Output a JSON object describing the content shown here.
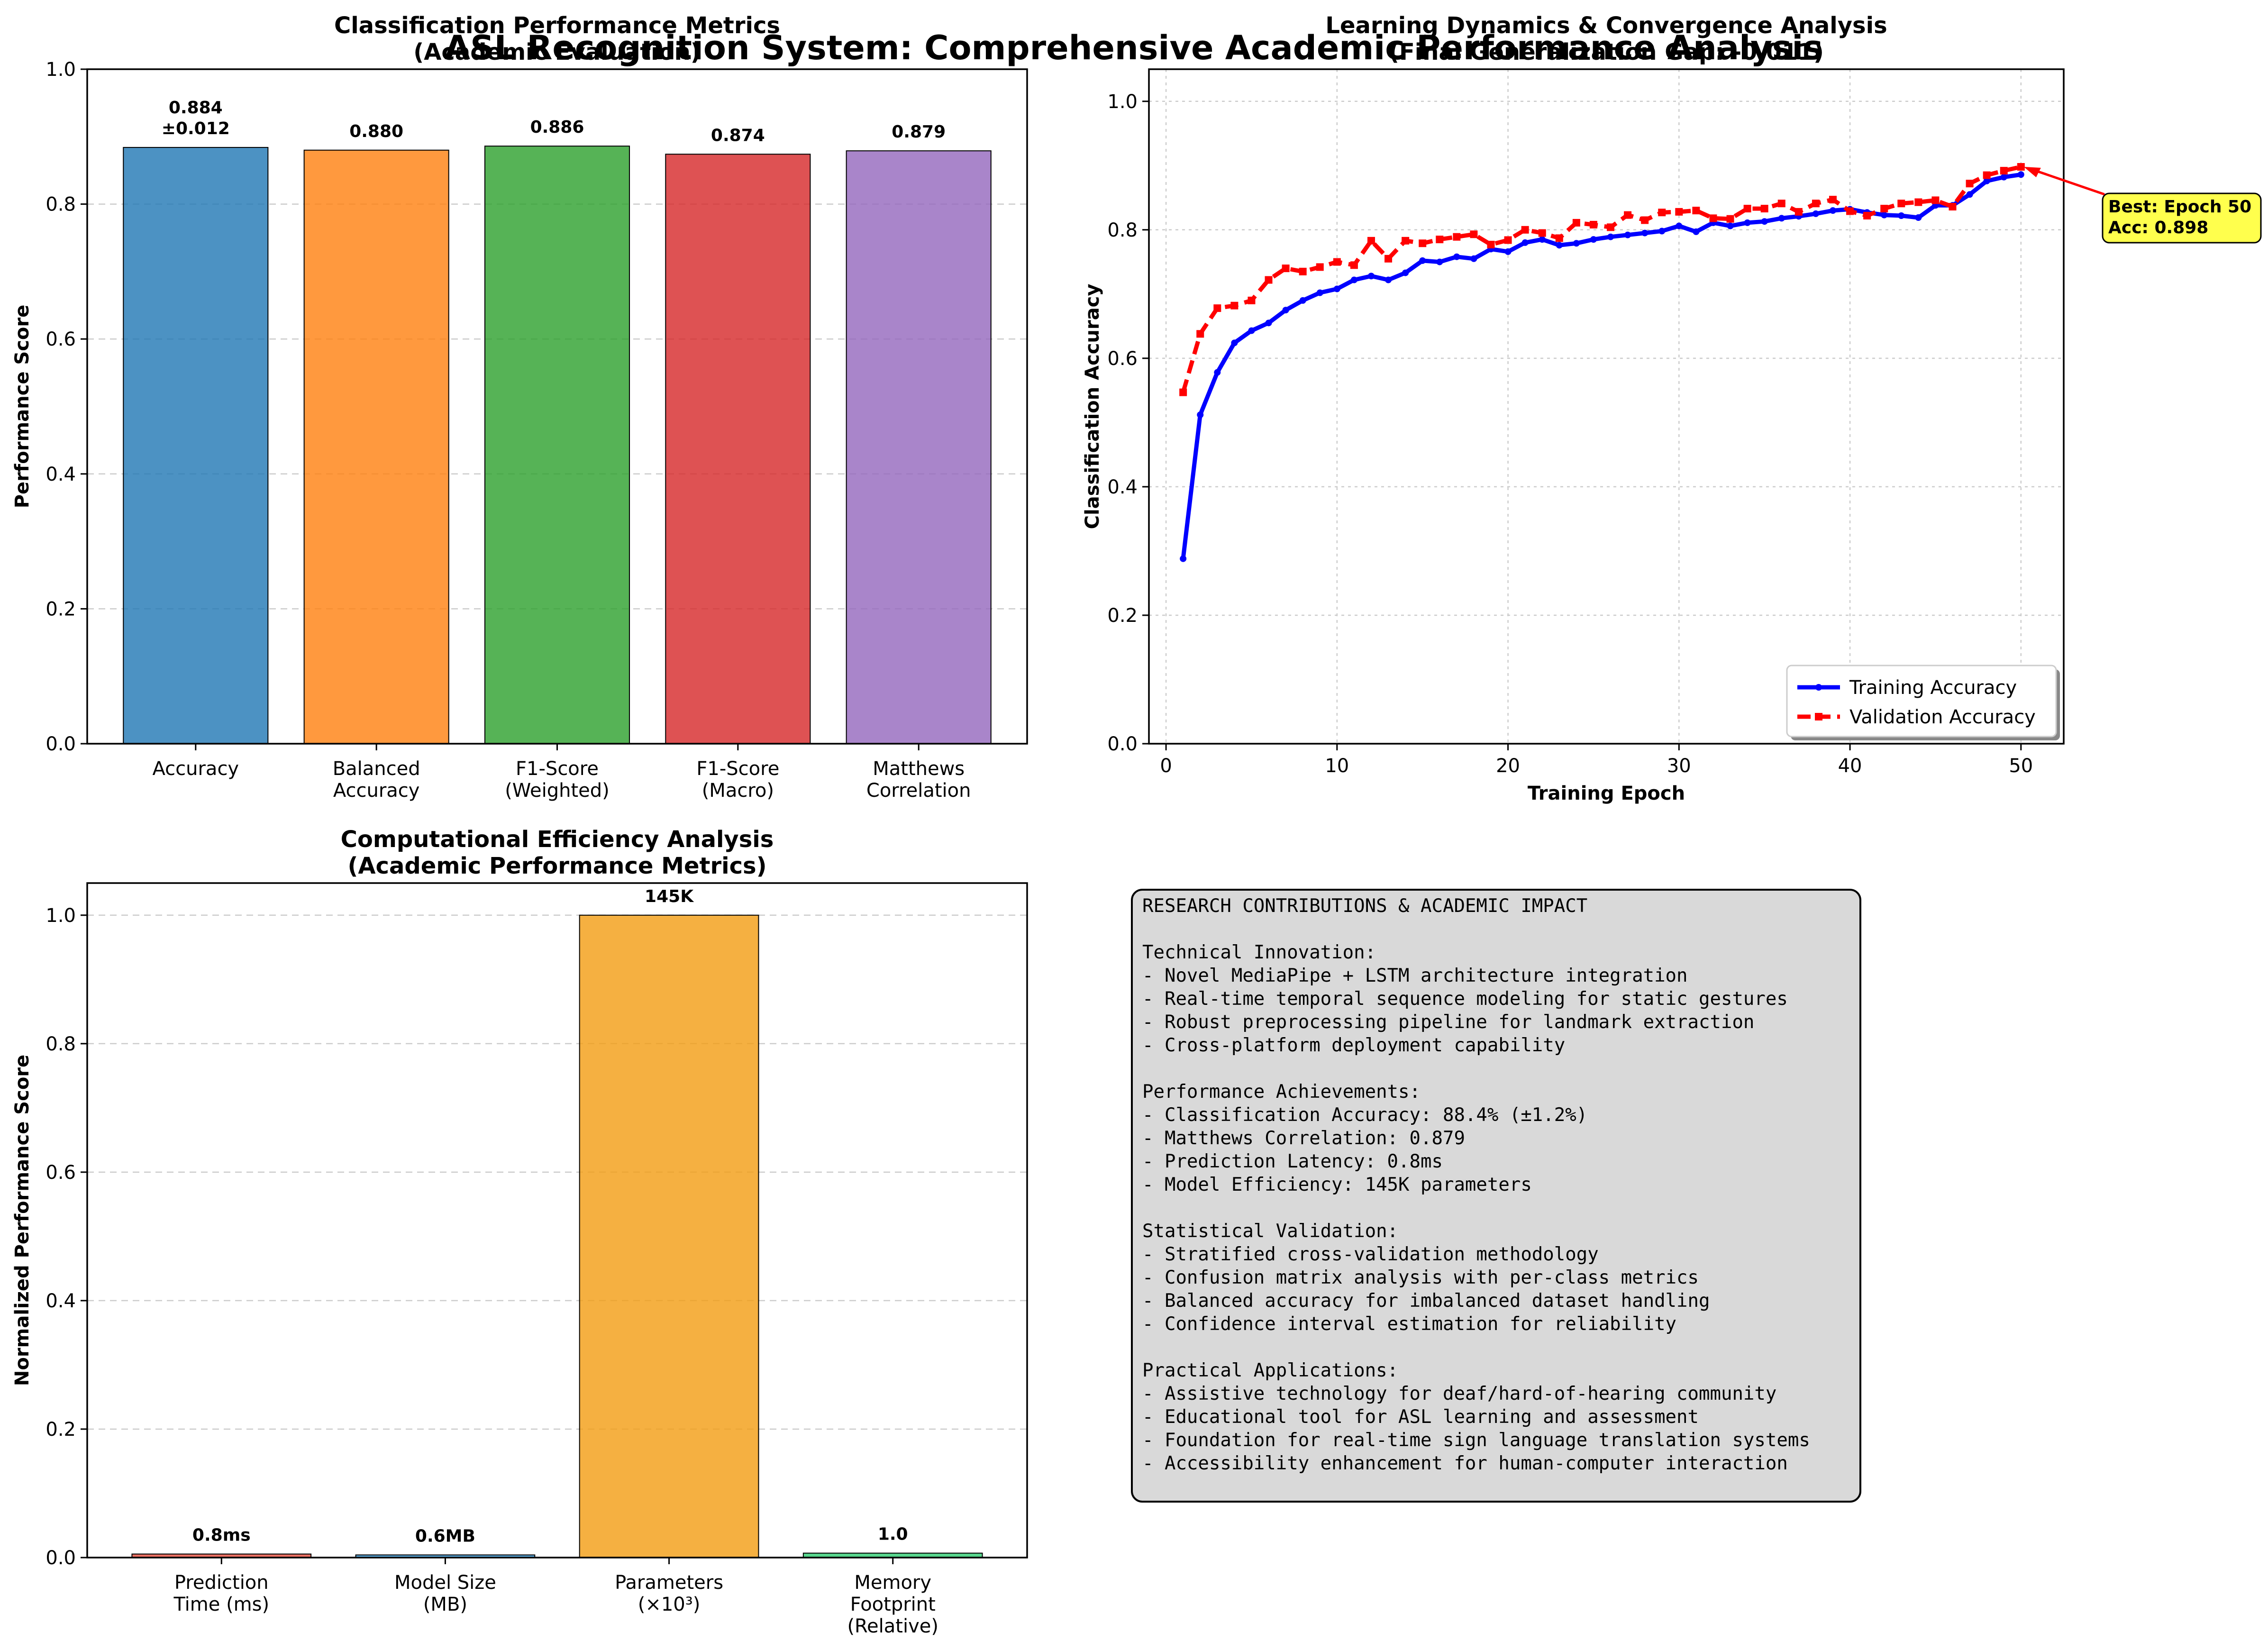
{
  "suptitle": "ASL Recognition System: Comprehensive Academic Performance Analysis",
  "chart_data": [
    {
      "id": "classification",
      "type": "bar",
      "title": [
        "Classification Performance Metrics",
        "(Academic Evaluation)"
      ],
      "xlabel": "",
      "ylabel": "Performance Score",
      "ylim": [
        0,
        1.0
      ],
      "yticks": [
        "0.0",
        "0.2",
        "0.4",
        "0.6",
        "0.8",
        "1.0"
      ],
      "categories": [
        [
          "Accuracy"
        ],
        [
          "Balanced",
          "Accuracy"
        ],
        [
          "F1-Score",
          "(Weighted)"
        ],
        [
          "F1-Score",
          "(Macro)"
        ],
        [
          "Matthews",
          "Correlation"
        ]
      ],
      "values": [
        0.884,
        0.88,
        0.886,
        0.874,
        0.879
      ],
      "value_labels": [
        [
          "0.884",
          "±0.012"
        ],
        [
          "0.880"
        ],
        [
          "0.886"
        ],
        [
          "0.874"
        ],
        [
          "0.879"
        ]
      ],
      "colors": [
        "#1f77b4",
        "#ff7f0e",
        "#2ca02c",
        "#d62728",
        "#9467bd"
      ],
      "grid": "y-dashed"
    },
    {
      "id": "learning",
      "type": "line",
      "title": [
        "Learning Dynamics & Convergence Analysis",
        "(Final Generalization Gap: -0.011)"
      ],
      "xlabel": "Training Epoch",
      "ylabel": "Classification Accuracy",
      "xlim": [
        0,
        52.5
      ],
      "ylim": [
        0,
        1.05
      ],
      "xticks": [
        "0",
        "10",
        "20",
        "30",
        "40",
        "50"
      ],
      "yticks": [
        "0.0",
        "0.2",
        "0.4",
        "0.6",
        "0.8",
        "1.0"
      ],
      "x": [
        1,
        2,
        3,
        4,
        5,
        6,
        7,
        8,
        9,
        10,
        11,
        12,
        13,
        14,
        15,
        16,
        17,
        18,
        19,
        20,
        21,
        22,
        23,
        24,
        25,
        26,
        27,
        28,
        29,
        30,
        31,
        32,
        33,
        34,
        35,
        36,
        37,
        38,
        39,
        40,
        41,
        42,
        43,
        44,
        45,
        46,
        47,
        48,
        49,
        50
      ],
      "series": [
        {
          "name": "Training Accuracy",
          "color": "#0000ff",
          "style": "solid",
          "values": [
            0.288,
            0.512,
            0.578,
            0.624,
            0.643,
            0.655,
            0.675,
            0.69,
            0.702,
            0.708,
            0.722,
            0.728,
            0.722,
            0.733,
            0.752,
            0.75,
            0.758,
            0.755,
            0.77,
            0.766,
            0.78,
            0.785,
            0.776,
            0.779,
            0.785,
            0.789,
            0.792,
            0.795,
            0.798,
            0.806,
            0.797,
            0.811,
            0.806,
            0.811,
            0.813,
            0.818,
            0.821,
            0.825,
            0.83,
            0.832,
            0.827,
            0.823,
            0.822,
            0.819,
            0.838,
            0.838,
            0.855,
            0.876,
            0.882,
            0.886
          ]
        },
        {
          "name": "Validation Accuracy",
          "color": "#ff0000",
          "style": "dashed",
          "values": [
            0.547,
            0.638,
            0.678,
            0.682,
            0.69,
            0.722,
            0.74,
            0.735,
            0.742,
            0.75,
            0.745,
            0.783,
            0.755,
            0.783,
            0.779,
            0.785,
            0.789,
            0.793,
            0.777,
            0.784,
            0.8,
            0.795,
            0.787,
            0.811,
            0.808,
            0.804,
            0.823,
            0.815,
            0.827,
            0.828,
            0.83,
            0.818,
            0.817,
            0.833,
            0.833,
            0.841,
            0.828,
            0.841,
            0.847,
            0.829,
            0.822,
            0.833,
            0.841,
            0.843,
            0.846,
            0.836,
            0.872,
            0.885,
            0.892,
            0.898
          ]
        }
      ],
      "legend": "lower-right",
      "annotation": {
        "text": [
          "Best: Epoch 50",
          "Acc: 0.898"
        ],
        "x": 50,
        "y": 0.898,
        "bg": "#ffff4d"
      },
      "grid": "both-dotted"
    },
    {
      "id": "efficiency",
      "type": "bar",
      "title": [
        "Computational Efficiency Analysis",
        "(Academic Performance Metrics)"
      ],
      "xlabel": "",
      "ylabel": "Normalized Performance Score",
      "ylim": [
        0,
        1.05
      ],
      "yticks": [
        "0.0",
        "0.2",
        "0.4",
        "0.6",
        "0.8",
        "1.0"
      ],
      "categories": [
        [
          "Prediction",
          "Time (ms)"
        ],
        [
          "Model Size",
          "(MB)"
        ],
        [
          "Parameters",
          "(×10³)"
        ],
        [
          "Memory",
          "Footprint",
          "(Relative)"
        ]
      ],
      "values": [
        0.0055,
        0.0041,
        1.0,
        0.0069
      ],
      "value_labels": [
        [
          "0.8ms"
        ],
        [
          "0.6MB"
        ],
        [
          "145K"
        ],
        [
          "1.0"
        ]
      ],
      "colors": [
        "#e74c3c",
        "#3498db",
        "#f39c12",
        "#2ecc71"
      ],
      "grid": "y-dashed"
    }
  ],
  "text_panel": {
    "lines": [
      "RESEARCH CONTRIBUTIONS & ACADEMIC IMPACT",
      "",
      "Technical Innovation:",
      "- Novel MediaPipe + LSTM architecture integration",
      "- Real-time temporal sequence modeling for static gestures",
      "- Robust preprocessing pipeline for landmark extraction",
      "- Cross-platform deployment capability",
      "",
      "Performance Achievements:",
      "- Classification Accuracy: 88.4% (±1.2%)",
      "- Matthews Correlation: 0.879",
      "- Prediction Latency: 0.8ms",
      "- Model Efficiency: 145K parameters",
      "",
      "Statistical Validation:",
      "- Stratified cross-validation methodology",
      "- Confusion matrix analysis with per-class metrics",
      "- Balanced accuracy for imbalanced dataset handling",
      "- Confidence interval estimation for reliability",
      "",
      "Practical Applications:",
      "- Assistive technology for deaf/hard-of-hearing community",
      "- Educational tool for ASL learning and assessment",
      "- Foundation for real-time sign language translation systems",
      "- Accessibility enhancement for human-computer interaction"
    ]
  }
}
